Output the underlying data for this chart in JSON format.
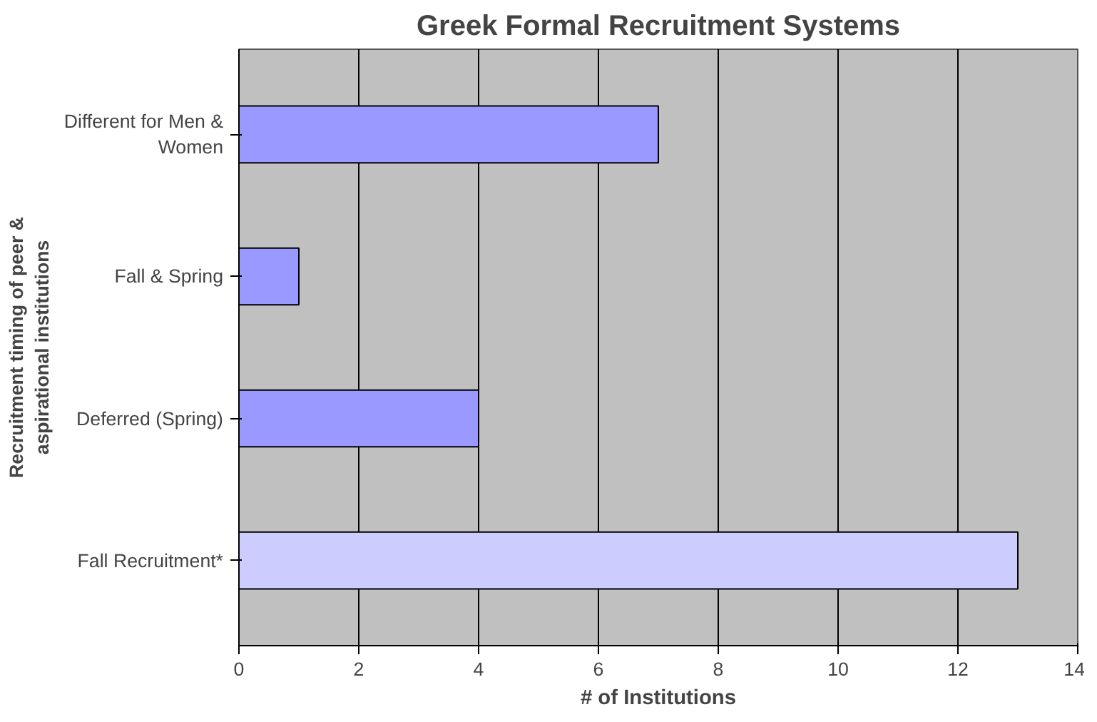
{
  "chart_data": {
    "type": "bar",
    "orientation": "horizontal",
    "title": "Greek Formal Recruitment Systems",
    "xlabel": "# of Institutions",
    "ylabel": "Recruitment timing of peer & aspirational institutions",
    "categories": [
      "Different for Men & Women",
      "Fall & Spring",
      "Deferred (Spring)",
      "Fall Recruitment*"
    ],
    "values": [
      7,
      1,
      4,
      13
    ],
    "colors": [
      "#9999ff",
      "#9999ff",
      "#9999ff",
      "#ccccff"
    ],
    "xlim": [
      0,
      14
    ],
    "xticks": [
      0,
      2,
      4,
      6,
      8,
      10,
      12,
      14
    ],
    "grid": "x"
  }
}
